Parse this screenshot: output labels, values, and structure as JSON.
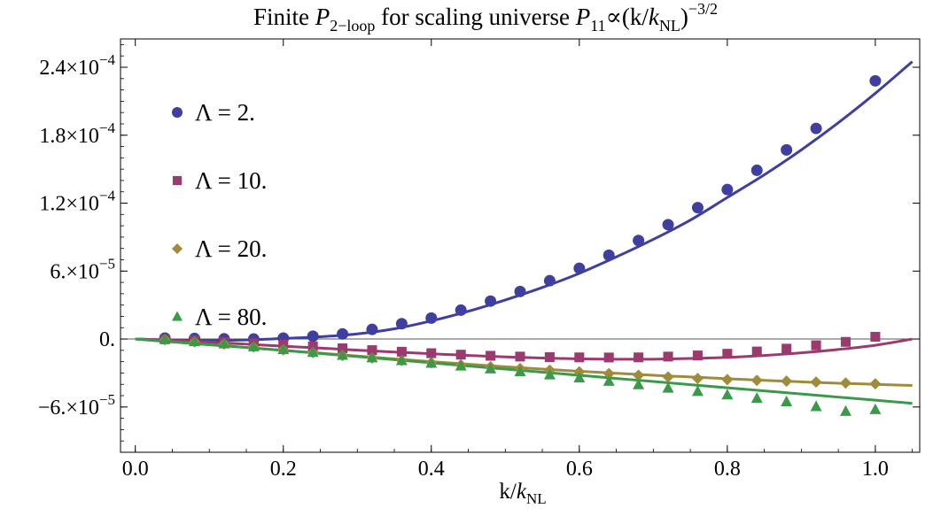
{
  "chart_data": {
    "type": "line",
    "title": {
      "prefix": "Finite ",
      "p_main": "P",
      "p_sub": "2−loop",
      "middle": " for scaling universe ",
      "p11_main": "P",
      "p11_sub": "11",
      "relation": "∝(k/",
      "knl_main": "k",
      "knl_sub": "NL",
      "close": ")",
      "exponent": "−3/2"
    },
    "xlabel": {
      "prefix": "k/",
      "main": "k",
      "sub": "NL"
    },
    "ylabel": "",
    "xlim": [
      -0.02,
      1.06
    ],
    "ylim": [
      -0.0001,
      0.000265
    ],
    "grid": false,
    "zero_line": true,
    "legend_position": "top-left",
    "x_ticks": [
      {
        "value": 0.0,
        "label": "0.0"
      },
      {
        "value": 0.2,
        "label": "0.2"
      },
      {
        "value": 0.4,
        "label": "0.4"
      },
      {
        "value": 0.6,
        "label": "0.6"
      },
      {
        "value": 0.8,
        "label": "0.8"
      },
      {
        "value": 1.0,
        "label": "1.0"
      }
    ],
    "y_ticks": [
      {
        "value": 0.00024,
        "mantissa": "2.4",
        "exp": "−4",
        "plain": ""
      },
      {
        "value": 0.00018,
        "mantissa": "1.8",
        "exp": "−4",
        "plain": ""
      },
      {
        "value": 0.00012,
        "mantissa": "1.2",
        "exp": "−4",
        "plain": ""
      },
      {
        "value": 6e-05,
        "mantissa": "6.",
        "exp": "−5",
        "plain": ""
      },
      {
        "value": 0.0,
        "mantissa": "",
        "exp": "",
        "plain": "0."
      },
      {
        "value": -6e-05,
        "mantissa": "−6.",
        "exp": "−5",
        "plain": ""
      }
    ],
    "series": [
      {
        "name": "Λ = 2.",
        "color": "#3f3f9f",
        "marker": "circle",
        "points": {
          "x": [
            0.04,
            0.08,
            0.12,
            0.16,
            0.2,
            0.24,
            0.28,
            0.32,
            0.36,
            0.4,
            0.44,
            0.48,
            0.52,
            0.56,
            0.6,
            0.64,
            0.68,
            0.72,
            0.76,
            0.8,
            0.84,
            0.88,
            0.92,
            1.0
          ],
          "y": [
            8e-07,
            5e-07,
            2e-07,
            0.0,
            8e-07,
            2.5e-06,
            4.5e-06,
            8.5e-06,
            1.35e-05,
            1.85e-05,
            2.55e-05,
            3.35e-05,
            4.2e-05,
            5.15e-05,
            6.25e-05,
            7.4e-05,
            8.7e-05,
            0.000101,
            0.000116,
            0.000132,
            0.000149,
            0.000167,
            0.000186,
            0.000228
          ]
        },
        "curve": {
          "x": [
            0.0,
            0.05,
            0.1,
            0.15,
            0.2,
            0.25,
            0.3,
            0.35,
            0.4,
            0.45,
            0.5,
            0.55,
            0.6,
            0.65,
            0.7,
            0.75,
            0.8,
            0.85,
            0.9,
            0.95,
            1.0,
            1.05
          ],
          "y": [
            0.0,
            -8e-07,
            -1.2e-06,
            -8e-07,
            5e-07,
            2e-06,
            4.5e-06,
            9e-06,
            1.6e-05,
            2.45e-05,
            3.45e-05,
            4.55e-05,
            5.8e-05,
            7.25e-05,
            8.8e-05,
            0.000105,
            0.000125,
            0.000145,
            0.000167,
            0.000191,
            0.000217,
            0.000245
          ]
        }
      },
      {
        "name": "Λ = 10.",
        "color": "#9b3a6e",
        "marker": "square",
        "points": {
          "x": [
            0.04,
            0.08,
            0.12,
            0.16,
            0.2,
            0.24,
            0.28,
            0.32,
            0.36,
            0.4,
            0.44,
            0.48,
            0.52,
            0.56,
            0.6,
            0.64,
            0.68,
            0.72,
            0.76,
            0.8,
            0.84,
            0.88,
            0.92,
            0.96,
            1.0
          ],
          "y": [
            -2e-07,
            -1.2e-06,
            -2.5e-06,
            -3.8e-06,
            -5e-06,
            -6.5e-06,
            -8.2e-06,
            -9.8e-06,
            -1.12e-05,
            -1.25e-05,
            -1.38e-05,
            -1.48e-05,
            -1.55e-05,
            -1.6e-05,
            -1.62e-05,
            -1.63e-05,
            -1.62e-05,
            -1.55e-05,
            -1.45e-05,
            -1.3e-05,
            -1.1e-05,
            -8.5e-06,
            -5.5e-06,
            -2.5e-06,
            2e-06
          ]
        },
        "curve": {
          "x": [
            0.0,
            0.05,
            0.1,
            0.15,
            0.2,
            0.25,
            0.3,
            0.35,
            0.4,
            0.45,
            0.5,
            0.55,
            0.6,
            0.65,
            0.7,
            0.75,
            0.8,
            0.85,
            0.9,
            0.95,
            1.0,
            1.05
          ],
          "y": [
            0.0,
            -1.2e-06,
            -2.8e-06,
            -4.5e-06,
            -6.3e-06,
            -8e-06,
            -9.8e-06,
            -1.15e-05,
            -1.3e-05,
            -1.45e-05,
            -1.58e-05,
            -1.68e-05,
            -1.75e-05,
            -1.78e-05,
            -1.78e-05,
            -1.72e-05,
            -1.62e-05,
            -1.45e-05,
            -1.22e-05,
            -9.2e-06,
            -5.5e-06,
            0.0
          ]
        }
      },
      {
        "name": "Λ = 20.",
        "color": "#9e8c3a",
        "marker": "diamond",
        "points": {
          "x": [
            0.04,
            0.08,
            0.12,
            0.16,
            0.2,
            0.24,
            0.28,
            0.32,
            0.36,
            0.4,
            0.44,
            0.48,
            0.52,
            0.56,
            0.6,
            0.64,
            0.68,
            0.72,
            0.76,
            0.8,
            0.84,
            0.88,
            0.92,
            0.96,
            1.0
          ],
          "y": [
            -5e-07,
            -2.5e-06,
            -4.5e-06,
            -7e-06,
            -9.5e-06,
            -1.2e-05,
            -1.45e-05,
            -1.68e-05,
            -1.9e-05,
            -2.1e-05,
            -2.28e-05,
            -2.45e-05,
            -2.6e-05,
            -2.75e-05,
            -2.9e-05,
            -3.05e-05,
            -3.2e-05,
            -3.35e-05,
            -3.48e-05,
            -3.58e-05,
            -3.65e-05,
            -3.72e-05,
            -3.8e-05,
            -3.88e-05,
            -3.95e-05
          ]
        },
        "curve": {
          "x": [
            0.0,
            0.05,
            0.1,
            0.15,
            0.2,
            0.25,
            0.3,
            0.35,
            0.4,
            0.45,
            0.5,
            0.55,
            0.6,
            0.65,
            0.7,
            0.75,
            0.8,
            0.85,
            0.9,
            0.95,
            1.0,
            1.05
          ],
          "y": [
            0.0,
            -2.5e-06,
            -5e-06,
            -7.5e-06,
            -1e-05,
            -1.25e-05,
            -1.5e-05,
            -1.75e-05,
            -2e-05,
            -2.22e-05,
            -2.45e-05,
            -2.65e-05,
            -2.85e-05,
            -3.02e-05,
            -3.2e-05,
            -3.35e-05,
            -3.5e-05,
            -3.65e-05,
            -3.78e-05,
            -3.9e-05,
            -4e-05,
            -4.1e-05
          ]
        }
      },
      {
        "name": "Λ = 80.",
        "color": "#3a9a4a",
        "marker": "triangle",
        "points": {
          "x": [
            0.04,
            0.08,
            0.12,
            0.16,
            0.2,
            0.24,
            0.28,
            0.32,
            0.36,
            0.4,
            0.44,
            0.48,
            0.52,
            0.56,
            0.6,
            0.64,
            0.68,
            0.72,
            0.76,
            0.8,
            0.84,
            0.88,
            0.92,
            0.96,
            1.0
          ],
          "y": [
            -5e-07,
            -2.5e-06,
            -4.5e-06,
            -7e-06,
            -9.5e-06,
            -1.2e-05,
            -1.45e-05,
            -1.68e-05,
            -1.92e-05,
            -2.15e-05,
            -2.4e-05,
            -2.65e-05,
            -2.9e-05,
            -3.18e-05,
            -3.45e-05,
            -3.75e-05,
            -4.05e-05,
            -4.35e-05,
            -4.65e-05,
            -4.95e-05,
            -5.25e-05,
            -5.55e-05,
            -5.98e-05,
            -6.4e-05,
            -6.25e-05
          ]
        },
        "curve": {
          "x": [
            0.0,
            0.05,
            0.1,
            0.15,
            0.2,
            0.25,
            0.3,
            0.35,
            0.4,
            0.45,
            0.5,
            0.55,
            0.6,
            0.65,
            0.7,
            0.75,
            0.8,
            0.85,
            0.9,
            0.95,
            1.0,
            1.05
          ],
          "y": [
            0.0,
            -2.5e-06,
            -5e-06,
            -7.5e-06,
            -1e-05,
            -1.28e-05,
            -1.55e-05,
            -1.82e-05,
            -2.1e-05,
            -2.38e-05,
            -2.65e-05,
            -2.93e-05,
            -3.2e-05,
            -3.48e-05,
            -3.75e-05,
            -4.03e-05,
            -4.3e-05,
            -4.58e-05,
            -4.85e-05,
            -5.13e-05,
            -5.4e-05,
            -5.68e-05
          ]
        }
      }
    ]
  }
}
